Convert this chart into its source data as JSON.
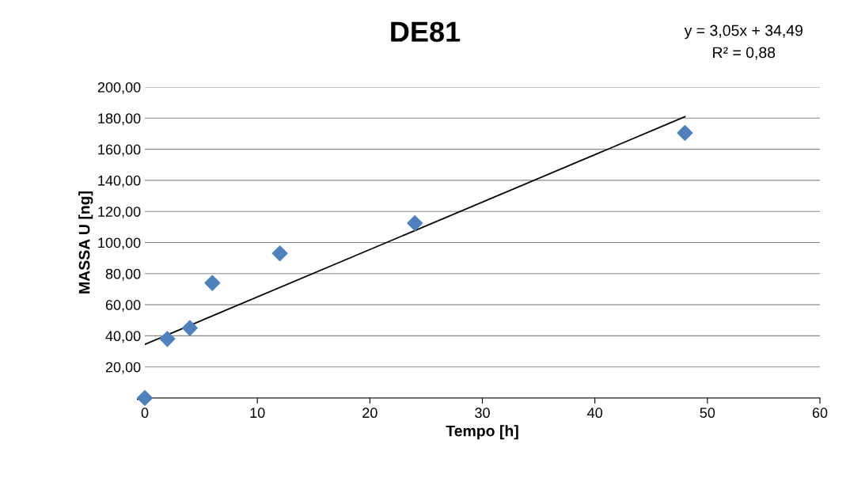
{
  "chart_data": {
    "type": "scatter",
    "title": "DE81",
    "xlabel": "Tempo [h]",
    "ylabel": "MASSA U [ng]",
    "annotations": [
      "y = 3,05x + 34,49",
      "R² = 0,88"
    ],
    "series": [
      {
        "color": "#4f81bd",
        "marker": "diamond",
        "x": [
          0,
          2,
          4,
          6,
          12,
          24,
          48
        ],
        "values": [
          0,
          38,
          45,
          74,
          93,
          112.5,
          170.5
        ]
      },
      {
        "type": "line",
        "color": "#000000",
        "marker": "none",
        "line_style": "solid",
        "x": [
          0,
          48
        ],
        "values": [
          34.5,
          180.9
        ]
      }
    ],
    "xlim": [
      0,
      60
    ],
    "xticks": [
      0,
      10,
      20,
      30,
      40,
      50,
      60
    ],
    "ylim": [
      0,
      200
    ],
    "yticks": [
      {
        "value": 0,
        "label": "-"
      },
      {
        "value": 20,
        "label": "20,00"
      },
      {
        "value": 40,
        "label": "40,00"
      },
      {
        "value": 60,
        "label": "60,00"
      },
      {
        "value": 80,
        "label": "80,00"
      },
      {
        "value": 100,
        "label": "100,00"
      },
      {
        "value": 120,
        "label": "120,00"
      },
      {
        "value": 140,
        "label": "140,00"
      },
      {
        "value": 160,
        "label": "160,00"
      },
      {
        "value": 180,
        "label": "180,00"
      },
      {
        "value": 200,
        "label": "200,00"
      }
    ],
    "grid": "y"
  }
}
